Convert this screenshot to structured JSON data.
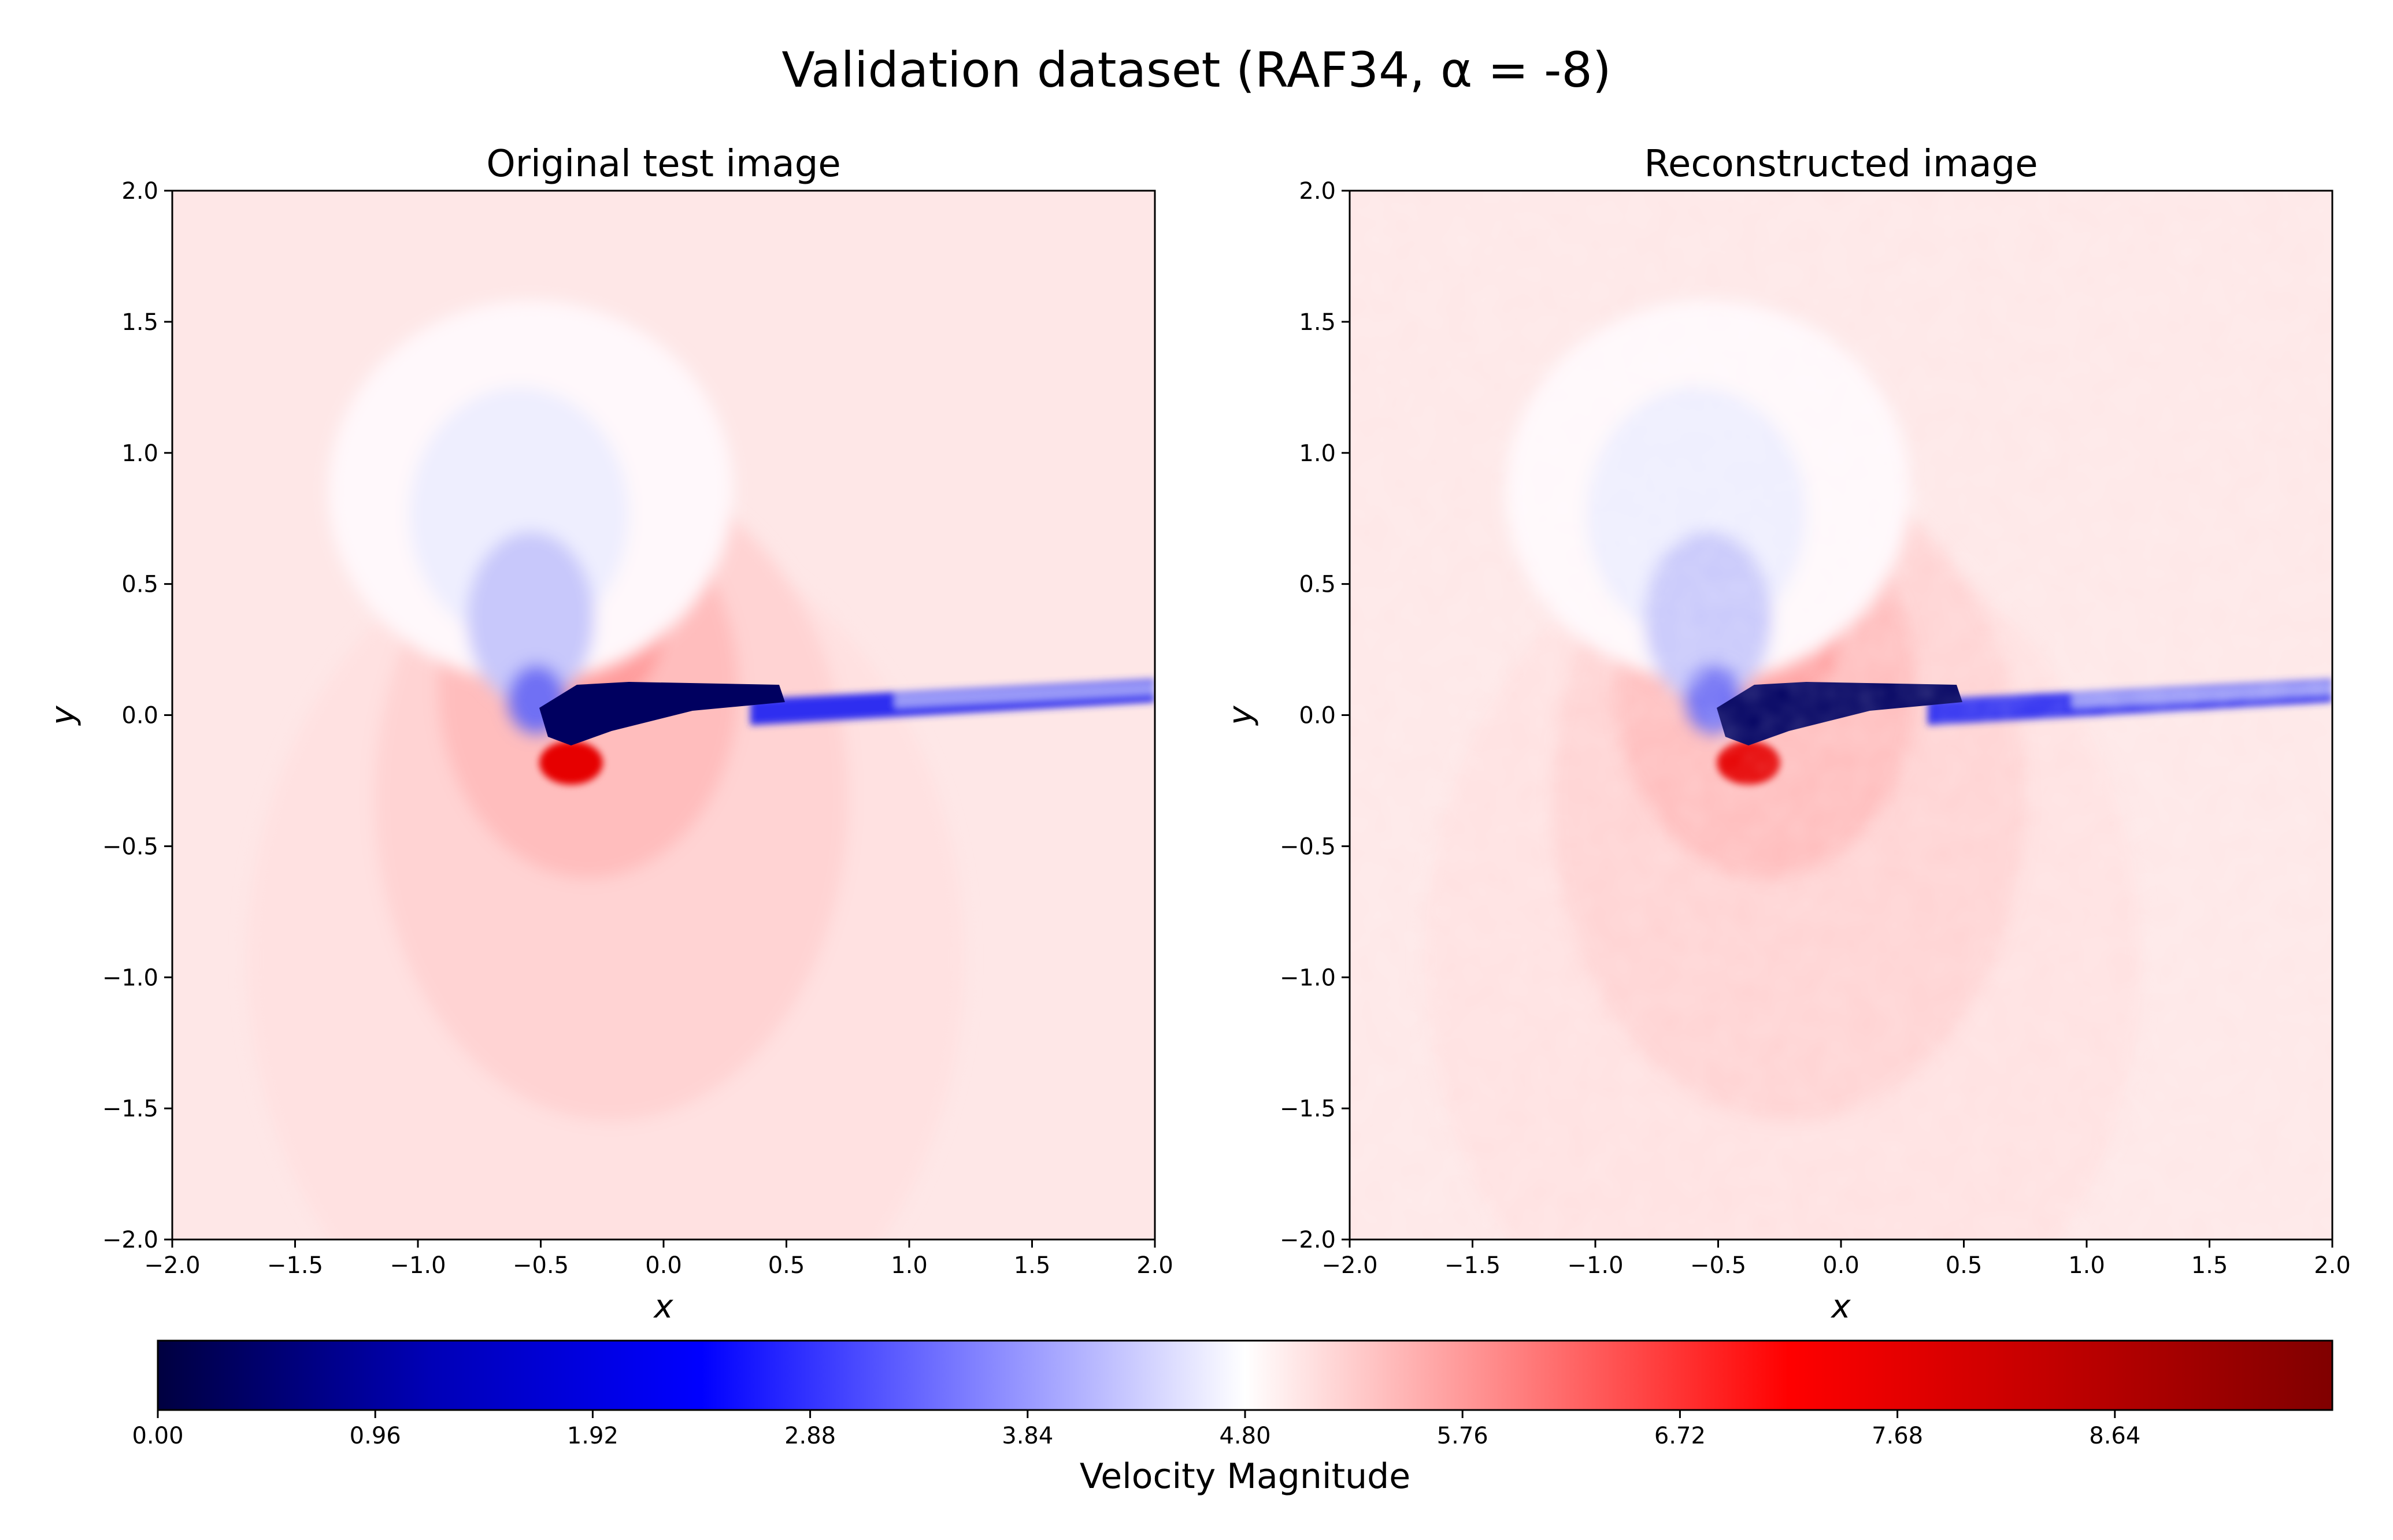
{
  "figure": {
    "title": "Validation dataset (RAF34, α = -8)"
  },
  "colors": {
    "cmap": [
      "#000040",
      "#0000b6",
      "#0000ff",
      "#8080ff",
      "#ffffff",
      "#ff8080",
      "#ff0000",
      "#c00000",
      "#800000"
    ],
    "far_field": "#fee7e7",
    "low_pressure_lobe": "#eeeefe",
    "high_pressure_lobe": "#ffd3d3",
    "stagnation": "#e60000",
    "wake_core": "#000060"
  },
  "chart_data": [
    {
      "type": "heatmap",
      "title": "Original test image",
      "xlabel": "x",
      "ylabel": "y",
      "xlim": [
        -2.0,
        2.0
      ],
      "ylim": [
        -2.0,
        2.0
      ],
      "xticks": [
        "−2.0",
        "−1.5",
        "−1.0",
        "−0.5",
        "0.0",
        "0.5",
        "1.0",
        "1.5",
        "2.0"
      ],
      "yticks": [
        "2.0",
        "1.5",
        "1.0",
        "0.5",
        "0.0",
        "−0.5",
        "−1.0",
        "−1.5",
        "−2.0"
      ],
      "field": "Velocity Magnitude"
    },
    {
      "type": "heatmap",
      "title": "Reconstructed image",
      "xlabel": "x",
      "ylabel": "y",
      "xlim": [
        -2.0,
        2.0
      ],
      "ylim": [
        -2.0,
        2.0
      ],
      "xticks": [
        "−2.0",
        "−1.5",
        "−1.0",
        "−0.5",
        "0.0",
        "0.5",
        "1.0",
        "1.5",
        "2.0"
      ],
      "yticks": [
        "2.0",
        "1.5",
        "1.0",
        "0.5",
        "0.0",
        "−0.5",
        "−1.0",
        "−1.5",
        "−2.0"
      ],
      "field": "Velocity Magnitude"
    }
  ],
  "colorbar": {
    "label": "Velocity Magnitude",
    "range": [
      0.0,
      9.6
    ],
    "ticks": [
      "0.00",
      "0.96",
      "1.92",
      "2.88",
      "3.84",
      "4.80",
      "5.76",
      "6.72",
      "7.68",
      "8.64"
    ]
  }
}
